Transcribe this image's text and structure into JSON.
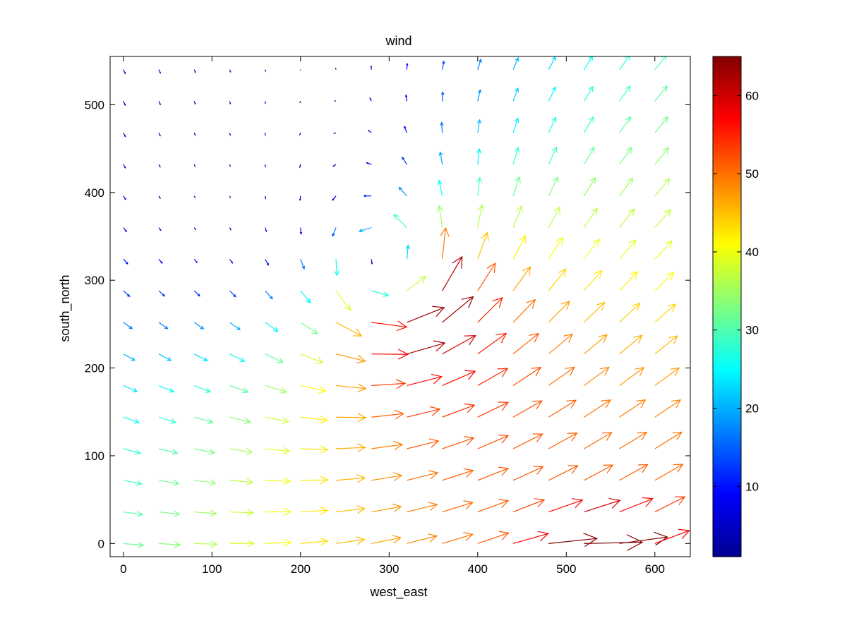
{
  "chart_data": {
    "type": "quiver",
    "title": "wind",
    "xlabel": "west_east",
    "ylabel": "south_north",
    "xlim": [
      -15,
      640
    ],
    "ylim": [
      -15,
      555
    ],
    "x_ticks": [
      0,
      100,
      200,
      300,
      400,
      500,
      600
    ],
    "y_ticks": [
      0,
      100,
      200,
      300,
      400,
      500
    ],
    "grid": false,
    "colormap": "jet",
    "colorbar": {
      "min": 1,
      "max": 65,
      "ticks": [
        10,
        20,
        30,
        40,
        50,
        60
      ]
    },
    "grid_x": [
      0,
      40,
      80,
      120,
      160,
      200,
      240,
      280,
      320,
      360,
      400,
      440,
      480,
      520,
      560,
      600
    ],
    "grid_y": [
      0,
      36,
      72,
      108,
      144,
      180,
      216,
      252,
      288,
      324,
      360,
      396,
      432,
      468,
      504,
      540
    ],
    "arrow_scale": 0.72,
    "wind_field": {
      "background_direction": "from the west",
      "vortex": {
        "center": [
          300,
          300
        ],
        "rotation": "counterclockwise",
        "peak_speed": 63
      },
      "min_speed_area": [
        100,
        390
      ],
      "max_speed_area": [
        520,
        0
      ]
    }
  }
}
